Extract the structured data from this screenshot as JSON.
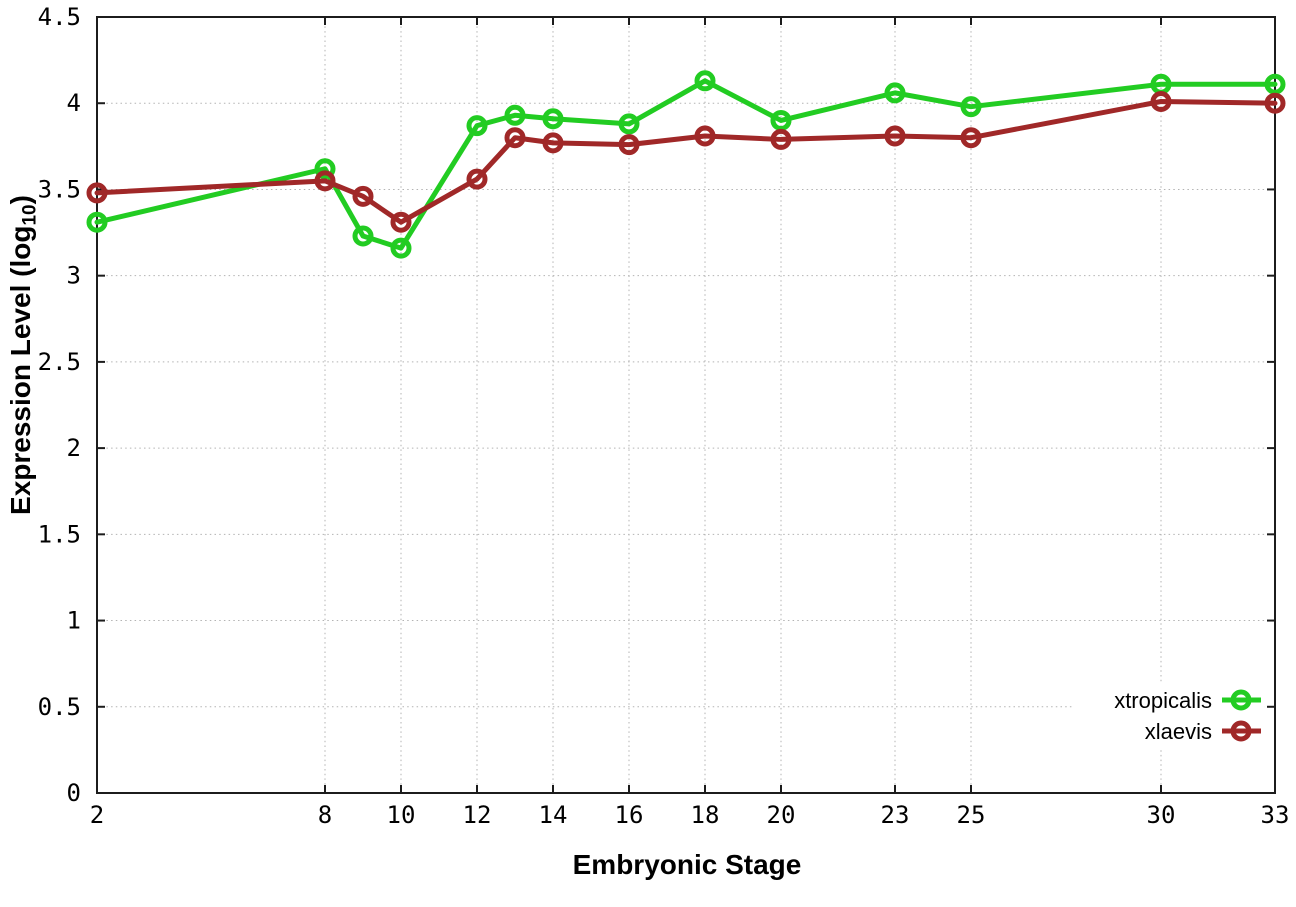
{
  "chart": {
    "xlabel": "Embryonic Stage",
    "ylabel_prefix": "Expression Level (log",
    "ylabel_sub": "10",
    "ylabel_suffix": ")"
  },
  "chart_data": {
    "type": "line",
    "title": "",
    "xlabel": "Embryonic Stage",
    "ylabel": "Expression Level (log10)",
    "x": [
      2,
      8,
      9,
      10,
      12,
      13,
      14,
      16,
      18,
      20,
      23,
      25,
      30,
      33
    ],
    "series": [
      {
        "name": "xtropicalis",
        "color": "#22cc22",
        "marker": "open-circle",
        "values": [
          3.31,
          3.62,
          3.23,
          3.16,
          3.87,
          3.93,
          3.91,
          3.88,
          4.13,
          3.9,
          4.06,
          3.98,
          4.11,
          4.11
        ]
      },
      {
        "name": "xlaevis",
        "color": "#a02828",
        "marker": "open-circle",
        "values": [
          3.48,
          3.55,
          3.46,
          3.31,
          3.56,
          3.8,
          3.77,
          3.76,
          3.81,
          3.79,
          3.81,
          3.8,
          4.01,
          4.0
        ]
      }
    ],
    "xlim": [
      2,
      33
    ],
    "ylim": [
      0,
      4.5
    ],
    "xticks": {
      "values": [
        2,
        8,
        10,
        12,
        14,
        16,
        18,
        20,
        23,
        25,
        30,
        33
      ],
      "labels": [
        "2",
        "8",
        "10",
        "12",
        "14",
        "16",
        "18",
        "20",
        "23",
        "25",
        "30",
        "33"
      ]
    },
    "yticks": {
      "values": [
        0,
        0.5,
        1,
        1.5,
        2,
        2.5,
        3,
        3.5,
        4,
        4.5
      ],
      "labels": [
        "0",
        "0.5",
        "1",
        "1.5",
        "2",
        "2.5",
        "3",
        "3.5",
        "4",
        "4.5"
      ]
    },
    "grid": true,
    "legend_position": "inside-right",
    "legend": [
      "xtropicalis",
      "xlaevis"
    ]
  },
  "colors": {
    "xtropicalis": "#22cc22",
    "xlaevis": "#a02828",
    "grid": "#b3b3b3",
    "border": "#1c1c1c",
    "text": "#000000",
    "background": "#ffffff"
  }
}
